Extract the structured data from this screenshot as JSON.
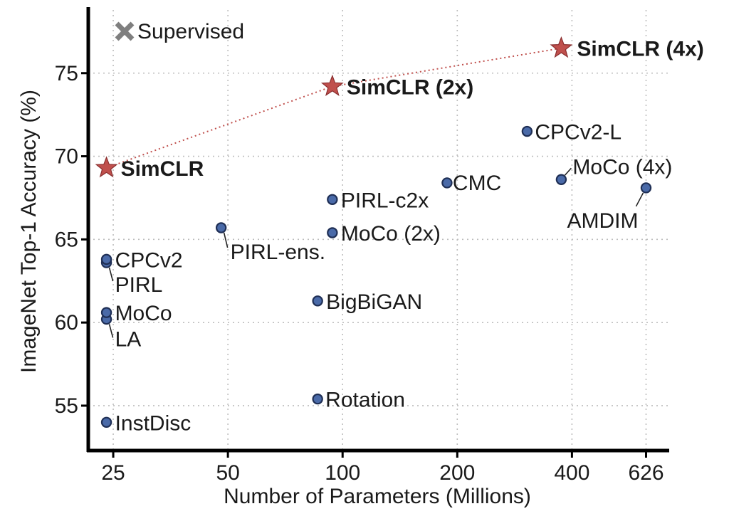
{
  "chart_data": {
    "type": "scatter",
    "xlabel": "Number of Parameters (Millions)",
    "ylabel": "ImageNet Top-1 Accuracy (%)",
    "x_scale": "log",
    "xlim": [
      21.5,
      720
    ],
    "ylim": [
      52.3,
      78.8
    ],
    "x_ticks": [
      {
        "value": 25,
        "label": "25"
      },
      {
        "value": 50,
        "label": "50"
      },
      {
        "value": 100,
        "label": "100"
      },
      {
        "value": 200,
        "label": "200"
      },
      {
        "value": 400,
        "label": "400"
      },
      {
        "value": 626,
        "label": "626"
      }
    ],
    "y_ticks": [
      {
        "value": 55,
        "label": "55"
      },
      {
        "value": 60,
        "label": "60"
      },
      {
        "value": 65,
        "label": "65"
      },
      {
        "value": 70,
        "label": "70"
      },
      {
        "value": 75,
        "label": "75"
      }
    ],
    "grid": true,
    "colors": {
      "baseline_marker": "#4a6aa8",
      "simclr_star": "#c0504d",
      "supervised_marker": "#7f7f7f",
      "simclr_trend": "#c0504d"
    },
    "legend": {
      "position": "top-left",
      "marker": "x",
      "label": "Supervised"
    },
    "series": [
      {
        "marker": "circle",
        "points": [
          {
            "label": "InstDisc",
            "x": 24,
            "y": 54.0
          },
          {
            "label": "Rotation",
            "x": 86,
            "y": 55.4
          },
          {
            "label": "BigBiGAN",
            "x": 86,
            "y": 61.3
          },
          {
            "label": "LA",
            "x": 24,
            "y": 60.2
          },
          {
            "label": "MoCo",
            "x": 24,
            "y": 60.6
          },
          {
            "label": "PIRL",
            "x": 24,
            "y": 63.6
          },
          {
            "label": "CPCv2",
            "x": 24,
            "y": 63.8
          },
          {
            "label": "PIRL-ens.",
            "x": 48,
            "y": 65.7
          },
          {
            "label": "MoCo (2x)",
            "x": 94,
            "y": 65.4
          },
          {
            "label": "PIRL-c2x",
            "x": 94,
            "y": 67.4
          },
          {
            "label": "CMC",
            "x": 188,
            "y": 68.4
          },
          {
            "label": "AMDIM",
            "x": 626,
            "y": 68.1
          },
          {
            "label": "MoCo (4x)",
            "x": 375,
            "y": 68.6
          },
          {
            "label": "CPCv2-L",
            "x": 305,
            "y": 71.5
          }
        ]
      },
      {
        "marker": "star",
        "points": [
          {
            "label": "SimCLR",
            "x": 24,
            "y": 69.3
          },
          {
            "label": "SimCLR (2x)",
            "x": 94,
            "y": 74.2
          },
          {
            "label": "SimCLR (4x)",
            "x": 375,
            "y": 76.5
          }
        ]
      }
    ]
  }
}
